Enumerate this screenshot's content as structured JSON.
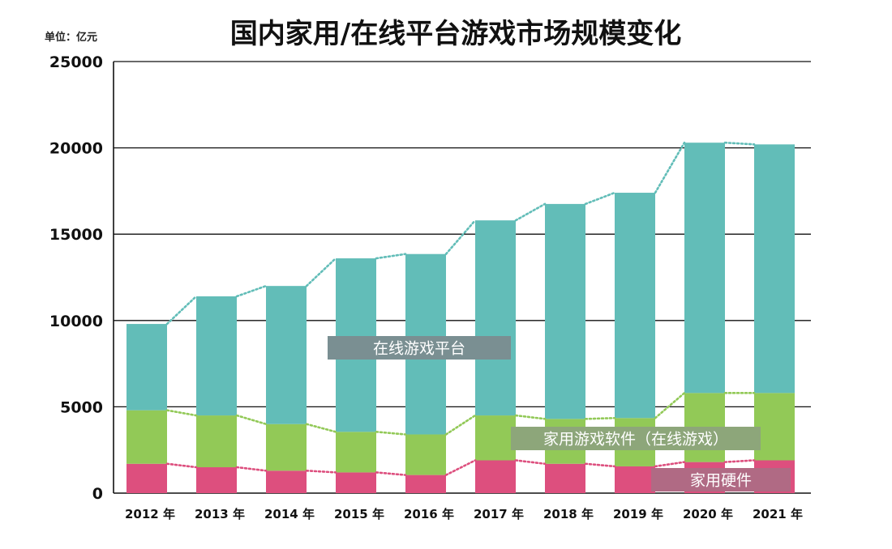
{
  "chart_data": {
    "type": "bar",
    "stacked": true,
    "title": "国内家用/在线平台游戏市场规模变化",
    "unit_label": "单位：亿元",
    "categories": [
      "2012 年",
      "2013 年",
      "2014 年",
      "2015 年",
      "2016 年",
      "2017 年",
      "2018 年",
      "2019 年",
      "2020 年",
      "2021 年"
    ],
    "ylim": [
      0,
      25000
    ],
    "yticks": [
      "0",
      "5000",
      "10000",
      "15000",
      "20000",
      "25000"
    ],
    "grid": true,
    "series": [
      {
        "name": "家用硬件",
        "color": "#dd4f7e",
        "values": [
          1700,
          1500,
          1300,
          1200,
          1050,
          1900,
          1700,
          1550,
          1800,
          1900
        ]
      },
      {
        "name": "家用游戏软件（在线游戏）",
        "color": "#92c957",
        "values": [
          3100,
          3000,
          2700,
          2350,
          2350,
          2600,
          2600,
          2800,
          4000,
          3900
        ]
      },
      {
        "name": "在线游戏平台",
        "color": "#62bdb8",
        "values": [
          5000,
          6900,
          8000,
          10050,
          10450,
          11300,
          12450,
          13050,
          14500,
          14400
        ]
      }
    ],
    "label_colors": {
      "在线游戏平台": "#7a8f92",
      "家用游戏软件（在线游戏）": "#8da67a",
      "家用硬件": "#b06a84"
    },
    "line_colors": {
      "家用硬件": "#dd4f7e",
      "家用游戏软件（在线游戏）": "#92c957",
      "在线游戏平台": "#62bdb8"
    }
  }
}
